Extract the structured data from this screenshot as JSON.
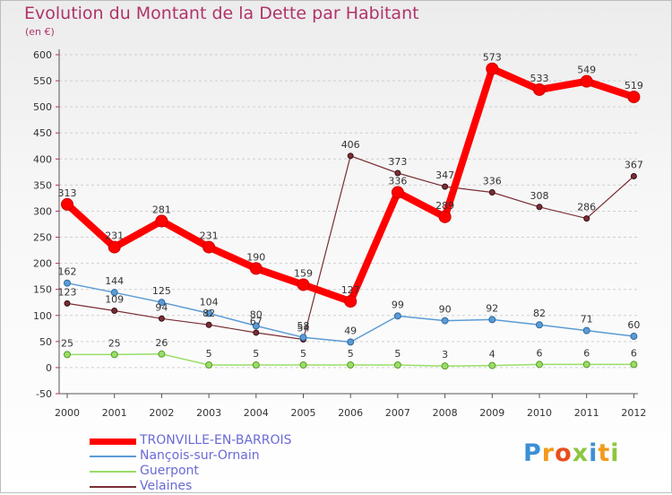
{
  "title": "Evolution du Montant de la Dette par Habitant",
  "unit": "(en €)",
  "logo": {
    "text": "Proxiti",
    "colors": [
      "#3b8fd6",
      "#f39a1e",
      "#e94e1b",
      "#8ec641",
      "#3b8fd6",
      "#f39a1e",
      "#8ec641"
    ]
  },
  "chart_data": {
    "type": "line",
    "title": "Evolution du Montant de la Dette par Habitant",
    "ylabel": "(en €)",
    "ylim": [
      -50,
      600
    ],
    "yticks": [
      -50,
      0,
      50,
      100,
      150,
      200,
      250,
      300,
      350,
      400,
      450,
      500,
      550,
      600
    ],
    "x": [
      "2000",
      "2001",
      "2002",
      "2003",
      "2004",
      "2005",
      "2006",
      "2007",
      "2008",
      "2009",
      "2010",
      "2011",
      "2012"
    ],
    "grid": "horizontal dashed",
    "legend": "bottom-left",
    "series": [
      {
        "name": "TRONVILLE-EN-BARROIS",
        "color": "#ff0000",
        "values": [
          313,
          231,
          281,
          231,
          190,
          159,
          127,
          336,
          289,
          573,
          533,
          549,
          519
        ]
      },
      {
        "name": "Nançois-sur-Ornain",
        "color": "#5b9bd5",
        "values": [
          162,
          144,
          125,
          104,
          80,
          58,
          49,
          99,
          90,
          92,
          82,
          71,
          60
        ]
      },
      {
        "name": "Guerpont",
        "color": "#99dd66",
        "values": [
          25,
          25,
          26,
          5,
          5,
          5,
          5,
          5,
          3,
          4,
          6,
          6,
          6
        ]
      },
      {
        "name": "Velaines",
        "color": "#7a2e35",
        "values": [
          123,
          109,
          94,
          82,
          67,
          54,
          406,
          373,
          347,
          336,
          308,
          286,
          367
        ]
      }
    ],
    "data_labels": {
      "TRONVILLE-EN-BARROIS": [
        "313",
        "231",
        "281",
        "231",
        "190",
        "159",
        "127",
        "336",
        "289",
        "573",
        "533",
        "549",
        "519"
      ],
      "Nançois-sur-Ornain": [
        "162",
        "144",
        "125",
        "104",
        "80",
        "58",
        "49",
        "99",
        "90",
        "92",
        "82",
        "71",
        "60"
      ],
      "Guerpont": [
        "25",
        "25",
        "26",
        "5",
        "5",
        "5",
        "5",
        "5",
        "3",
        "4",
        "6",
        "6",
        "6"
      ],
      "Velaines": [
        "123",
        "109",
        "94",
        "82",
        "67",
        "54",
        "406",
        "373",
        "347",
        "336",
        "308",
        "286",
        "367"
      ]
    }
  }
}
